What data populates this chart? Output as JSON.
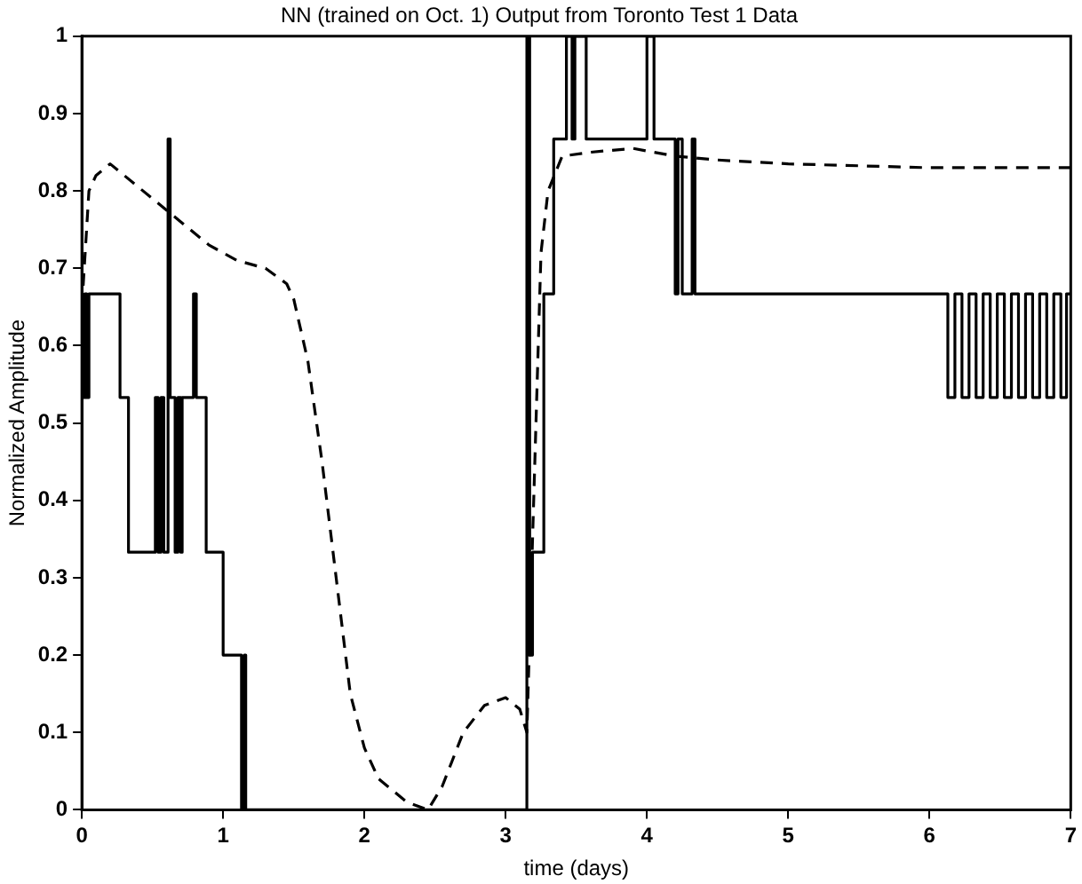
{
  "chart_data": {
    "type": "line",
    "title": "NN (trained on Oct. 1) Output from Toronto Test 1 Data",
    "xlabel": "time (days)",
    "ylabel": "Normalized Amplitude",
    "xlim": [
      0,
      7
    ],
    "xticks": [
      0,
      1,
      2,
      3,
      4,
      5,
      6,
      7
    ],
    "ylim": [
      0,
      1
    ],
    "yticks": [
      0,
      0.1,
      0.2,
      0.3,
      0.4,
      0.5,
      0.6,
      0.7,
      0.8,
      0.9,
      1
    ],
    "grid": false,
    "legend": false,
    "marker": "none",
    "series": [
      {
        "type": "step",
        "color": "#000000",
        "line_style": "solid",
        "x": [
          0,
          0.02,
          0.035,
          0.05,
          0.27,
          0.33,
          0.52,
          0.54,
          0.56,
          0.58,
          0.61,
          0.625,
          0.66,
          0.68,
          0.7,
          0.71,
          0.79,
          0.81,
          0.88,
          1.0,
          1.13,
          1.15,
          1.16,
          3.15,
          3.17,
          3.19,
          3.27,
          3.34,
          3.43,
          3.47,
          3.49,
          3.57,
          4.0,
          4.05,
          4.2,
          4.22,
          4.25,
          4.32,
          4.34,
          6.13,
          6.18,
          6.23,
          6.28,
          6.33,
          6.38,
          6.43,
          6.48,
          6.53,
          6.58,
          6.63,
          6.68,
          6.73,
          6.78,
          6.83,
          6.88,
          6.93,
          6.97,
          7
        ],
        "values": [
          0.533,
          0.667,
          0.533,
          0.667,
          0.533,
          0.333,
          0.533,
          0.333,
          0.533,
          0.333,
          0.867,
          0.533,
          0.333,
          0.533,
          0.333,
          0.533,
          0.667,
          0.533,
          0.333,
          0.2,
          0,
          0.2,
          0,
          1,
          0.2,
          0.333,
          0.667,
          0.867,
          1,
          0.867,
          1,
          0.867,
          1,
          0.867,
          0.667,
          0.867,
          0.667,
          0.867,
          0.667,
          0.533,
          0.667,
          0.533,
          0.667,
          0.533,
          0.667,
          0.533,
          0.667,
          0.533,
          0.667,
          0.533,
          0.667,
          0.533,
          0.667,
          0.533,
          0.667,
          0.533,
          0.667,
          0.667
        ]
      },
      {
        "type": "line",
        "color": "#000000",
        "line_style": "dashed",
        "x": [
          0,
          0.05,
          0.1,
          0.2,
          0.3,
          0.5,
          0.7,
          0.9,
          1.1,
          1.3,
          1.45,
          1.5,
          1.6,
          1.7,
          1.8,
          1.9,
          2.0,
          2.1,
          2.3,
          2.45,
          2.55,
          2.7,
          2.85,
          3.0,
          3.1,
          3.15,
          3.25,
          3.3,
          3.4,
          3.6,
          3.9,
          4.2,
          4.5,
          5,
          6,
          7
        ],
        "values": [
          0.65,
          0.8,
          0.82,
          0.835,
          0.82,
          0.79,
          0.76,
          0.73,
          0.71,
          0.7,
          0.68,
          0.66,
          0.58,
          0.45,
          0.3,
          0.15,
          0.08,
          0.04,
          0.01,
          0,
          0.03,
          0.1,
          0.135,
          0.145,
          0.13,
          0.1,
          0.72,
          0.8,
          0.845,
          0.85,
          0.855,
          0.845,
          0.84,
          0.835,
          0.83,
          0.83
        ]
      }
    ]
  }
}
